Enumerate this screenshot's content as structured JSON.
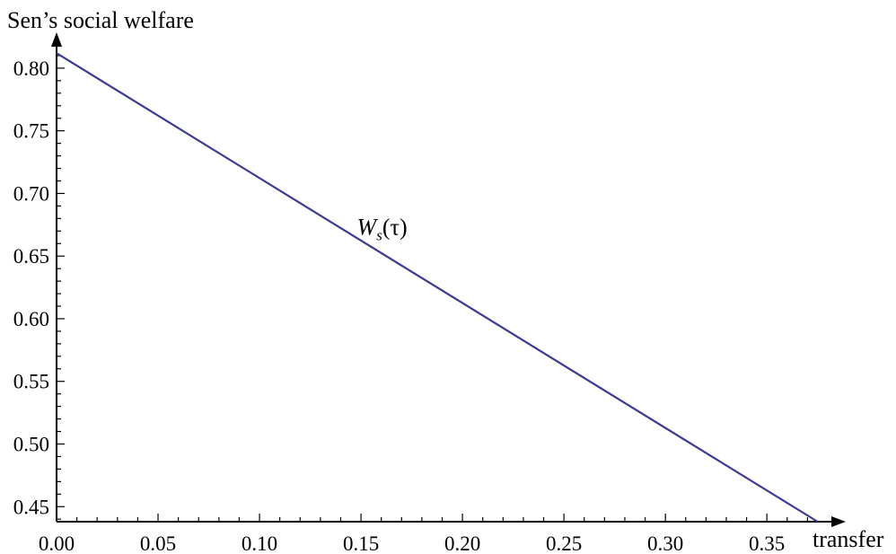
{
  "chart_data": {
    "type": "line",
    "title": "",
    "xlabel": "transfer",
    "ylabel": "Sen’s social welfare",
    "xlim": [
      0.0,
      0.38
    ],
    "ylim": [
      0.438,
      0.82
    ],
    "x_ticks": [
      0.0,
      0.05,
      0.1,
      0.15,
      0.2,
      0.25,
      0.3,
      0.35
    ],
    "x_tick_labels": [
      "0.00",
      "0.05",
      "0.10",
      "0.15",
      "0.20",
      "0.25",
      "0.30",
      "0.35"
    ],
    "y_ticks": [
      0.45,
      0.5,
      0.55,
      0.6,
      0.65,
      0.7,
      0.75,
      0.8
    ],
    "y_tick_labels": [
      "0.45",
      "0.50",
      "0.55",
      "0.60",
      "0.65",
      "0.70",
      "0.75",
      "0.80"
    ],
    "grid": false,
    "series": [
      {
        "name": "Ws(τ)",
        "x": [
          0.0,
          0.375
        ],
        "y": [
          0.812,
          0.438
        ],
        "color": "#3a3a96"
      }
    ],
    "annotations": [
      {
        "text_main": "W",
        "text_sub": "s",
        "text_rest": "(τ)",
        "x": 0.148,
        "y": 0.667
      }
    ]
  }
}
